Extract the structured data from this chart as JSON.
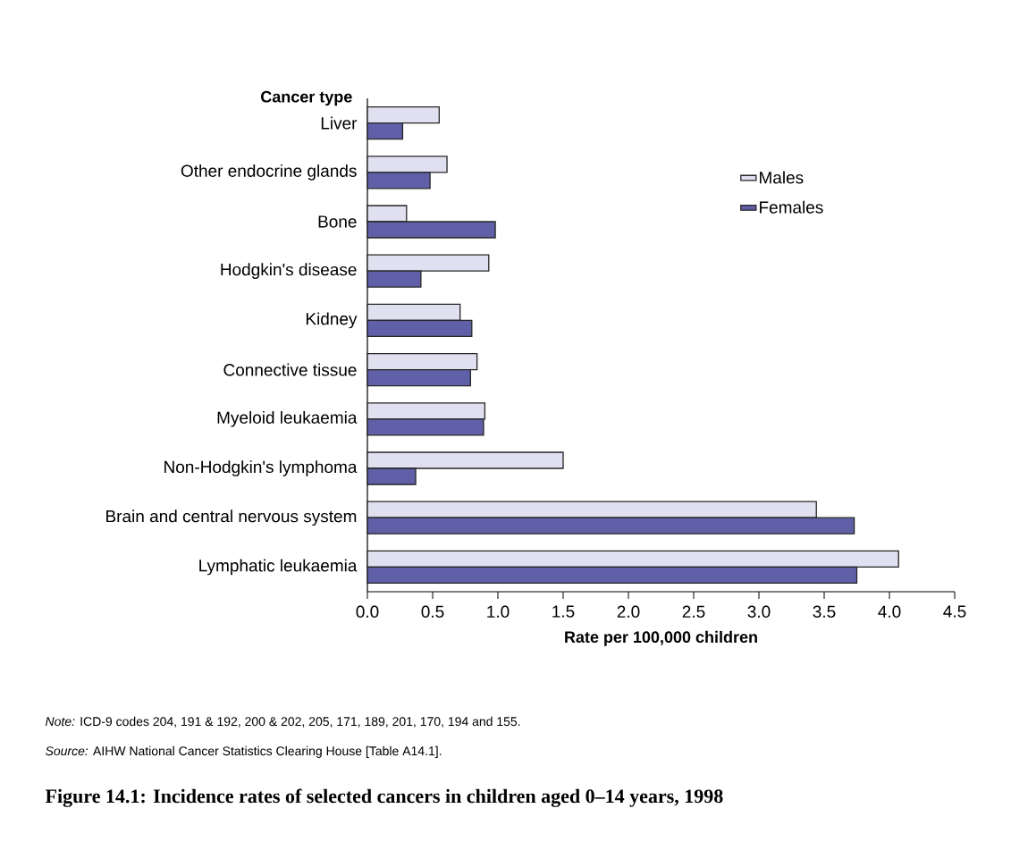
{
  "chart_data": {
    "type": "bar",
    "orientation": "horizontal",
    "title": "Figure 14.1: Incidence rates of selected cancers in children aged 0–14 years, 1998",
    "ylabel": "Cancer type",
    "xlabel": "Rate per 100,000 children",
    "categories": [
      "Liver",
      "Other endocrine glands",
      "Bone",
      "Hodgkin's disease",
      "Kidney",
      "Connective tissue",
      "Myeloid leukaemia",
      "Non-Hodgkin's lymphoma",
      "Brain and central nervous system",
      "Lymphatic leukaemia"
    ],
    "series": [
      {
        "name": "Males",
        "color": "#e0e0f0",
        "values": [
          0.55,
          0.61,
          0.3,
          0.93,
          0.71,
          0.84,
          0.9,
          1.5,
          3.44,
          4.07
        ]
      },
      {
        "name": "Females",
        "color": "#6060a8",
        "values": [
          0.27,
          0.48,
          0.98,
          0.41,
          0.8,
          0.79,
          0.89,
          0.37,
          3.73,
          3.75
        ]
      }
    ],
    "xlim": [
      0,
      4.5
    ],
    "xticks": [
      {
        "value": 0,
        "label": "0.0"
      },
      {
        "value": 0.5,
        "label": "0.5"
      },
      {
        "value": 1,
        "label": "1.0"
      },
      {
        "value": 1.5,
        "label": "1.5"
      },
      {
        "value": 2,
        "label": "2.0"
      },
      {
        "value": 2.5,
        "label": "2.5"
      },
      {
        "value": 3,
        "label": "3.0"
      },
      {
        "value": 3.5,
        "label": "3.5"
      },
      {
        "value": 4,
        "label": "4.0"
      },
      {
        "value": 4.5,
        "label": "4.5"
      }
    ],
    "legend": "top right",
    "grid": false,
    "annotations": [
      "*Note:* ICD-9 codes 204, 191 & 192, 200 & 202, 205, 171, 189, 201, 170, 194 and 155.",
      "*Source:* AIHW National Cancer Statistics Clearing House [Table A14.1]."
    ]
  }
}
